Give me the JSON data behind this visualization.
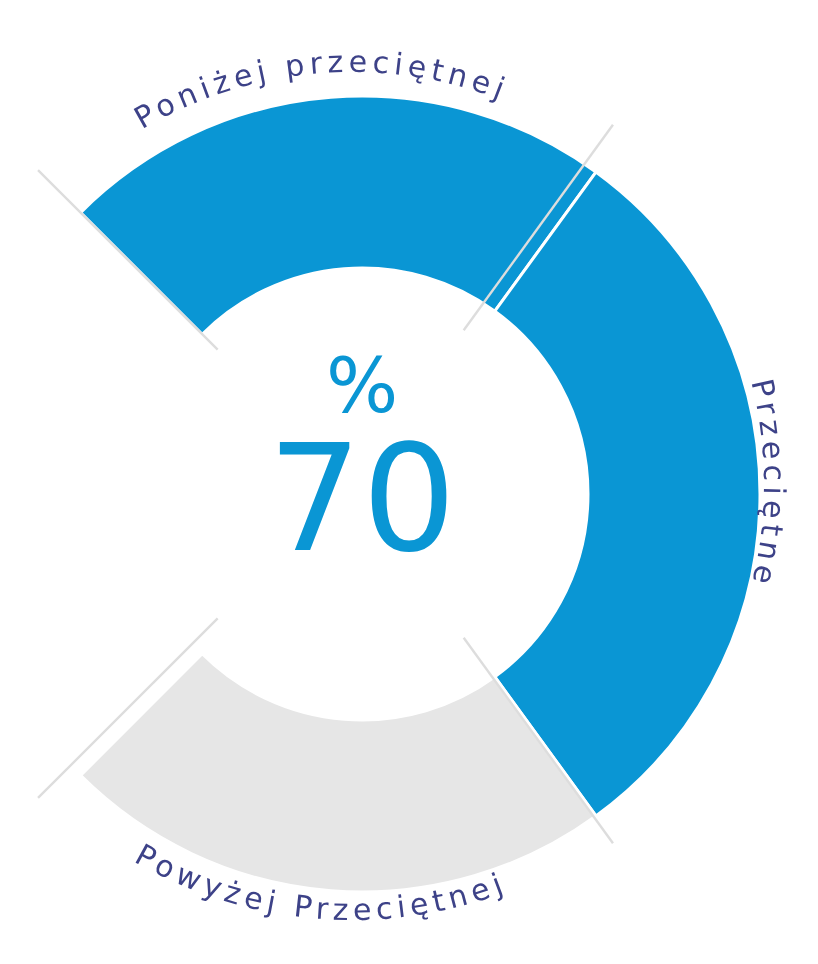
{
  "chart_data": {
    "type": "donut",
    "categories": [
      "Poniżej przeciętnej",
      "Przeciętne",
      "Powyżej Przeciętnej"
    ],
    "values": [
      30,
      40,
      30
    ],
    "colors": [
      "#0a96d4",
      "#0a96d4",
      "#e6e6e6"
    ],
    "annotations": [
      "%",
      "70"
    ],
    "legend": false
  }
}
